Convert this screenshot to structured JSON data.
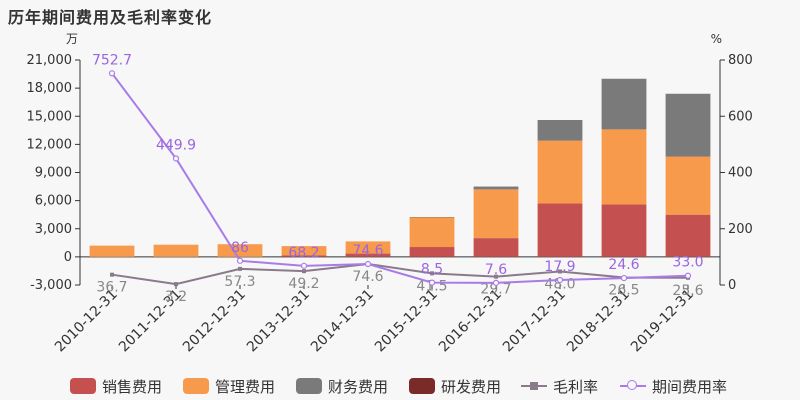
{
  "title": "历年期间费用及毛利率变化",
  "chart_data": {
    "type": "bar",
    "stacked": true,
    "categories": [
      "2010-12-31",
      "2011-12-31",
      "2012-12-31",
      "2013-12-31",
      "2014-12-31",
      "2015-12-31",
      "2016-12-31",
      "2017-12-31",
      "2018-12-31",
      "2019-12-31"
    ],
    "y_left": {
      "unit": "万",
      "ylim": [
        -3000,
        21000
      ],
      "ticks": [
        "-3,000",
        "0",
        "3,000",
        "6,000",
        "9,000",
        "12,000",
        "15,000",
        "18,000",
        "21,000"
      ]
    },
    "y_right": {
      "unit": "%",
      "ylim": [
        0,
        800
      ],
      "ticks": [
        "0",
        "200",
        "400",
        "600",
        "800"
      ]
    },
    "grid": false,
    "legend_position": "bottom",
    "series": [
      {
        "name": "销售费用",
        "color": "#c4504f",
        "values": [
          0,
          0,
          0,
          150,
          350,
          1050,
          2000,
          5700,
          5600,
          4500
        ]
      },
      {
        "name": "管理费用",
        "color": "#f79a4b",
        "values": [
          1200,
          1300,
          1350,
          1000,
          1300,
          3150,
          5200,
          6700,
          8000,
          6200
        ]
      },
      {
        "name": "财务费用",
        "color": "#7a7a7a",
        "values": [
          0,
          0,
          0,
          0,
          0,
          50,
          300,
          2200,
          5400,
          6700
        ]
      },
      {
        "name": "研发费用",
        "color": "#7b2a2a",
        "values": [
          0,
          0,
          0,
          0,
          0,
          0,
          0,
          0,
          0,
          0
        ]
      }
    ],
    "line_series": [
      {
        "name": "毛利率",
        "color": "#8a7a8a",
        "axis": "right",
        "values": [
          36.7,
          3.2,
          57.3,
          49.2,
          74.6,
          41.5,
          29.7,
          48.0,
          26.5,
          25.6
        ],
        "labels": [
          "36.7",
          "3.2",
          "57.3",
          "49.2",
          "74.6",
          "41.5",
          "29.7",
          "48.0",
          "26.5",
          "25.6"
        ]
      },
      {
        "name": "期间费用率",
        "color": "#a87be8",
        "axis": "right",
        "values": [
          752.7,
          449.9,
          86.0,
          68.2,
          74.6,
          8.5,
          7.6,
          17.9,
          24.6,
          33.0
        ],
        "labels": [
          "752.7",
          "449.9",
          "86",
          "68.2",
          "74.6",
          "8.5",
          "7.6",
          "17.9",
          "24.6",
          "33.0"
        ]
      }
    ]
  }
}
